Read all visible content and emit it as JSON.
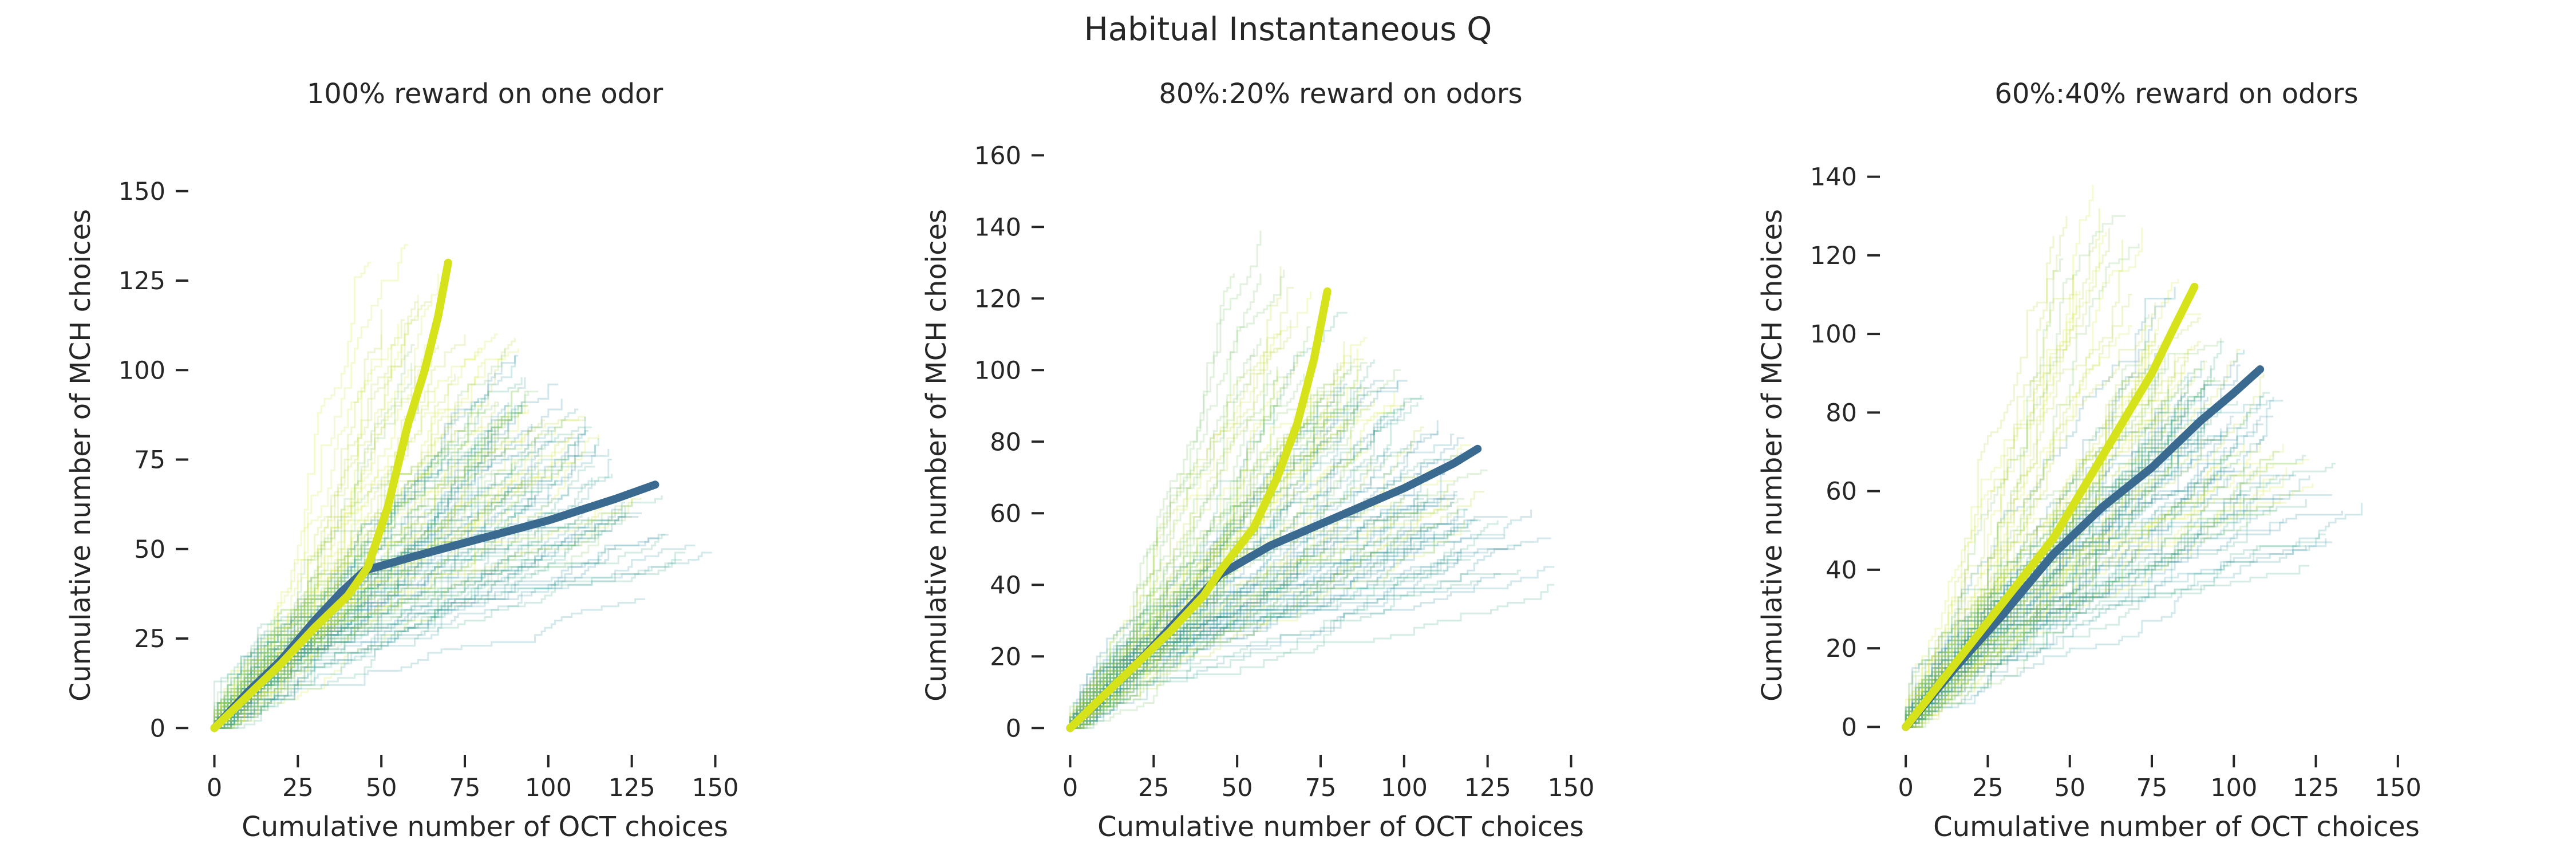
{
  "figure": {
    "title": "Habitual Instantaneous Q"
  },
  "colors": {
    "mean_low_reward_series": "#3a6a8f",
    "mean_high_reward_series": "#d6e31a",
    "individual_lines_palette": [
      "#b9d83a",
      "#d8ea3c",
      "#7cc46a",
      "#3fae8f",
      "#3a9ca8",
      "#2c8fa5"
    ]
  },
  "chart_data": [
    {
      "type": "line",
      "title": "100% reward on one odor",
      "xlabel": "Cumulative number of OCT choices",
      "ylabel": "Cumulative number of MCH choices",
      "xlim": [
        -3,
        165
      ],
      "ylim": [
        -3,
        165
      ],
      "xticks": [
        "0",
        "25",
        "50",
        "75",
        "100",
        "125",
        "150"
      ],
      "yticks": [
        "0",
        "25",
        "50",
        "75",
        "100",
        "125",
        "150"
      ],
      "xtick_values": [
        0,
        25,
        50,
        75,
        100,
        125,
        150
      ],
      "ytick_values": [
        0,
        25,
        50,
        75,
        100,
        125,
        150
      ],
      "grid": false,
      "legend": "none",
      "individual_lines": {
        "count": 120,
        "max_trials": [
          160,
          200
        ],
        "boundary": "x + y = number of trials"
      },
      "series": [
        {
          "values": [
            [
              0,
              0
            ],
            [
              10,
              10
            ],
            [
              20,
              19
            ],
            [
              30,
              30
            ],
            [
              38,
              38
            ],
            [
              45,
              44
            ],
            [
              60,
              48
            ],
            [
              80,
              53
            ],
            [
              100,
              58
            ],
            [
              120,
              64
            ],
            [
              132,
              68
            ]
          ]
        },
        {
          "values": [
            [
              0,
              0
            ],
            [
              10,
              9
            ],
            [
              20,
              18
            ],
            [
              30,
              28
            ],
            [
              40,
              37
            ],
            [
              46,
              45
            ],
            [
              52,
              62
            ],
            [
              58,
              85
            ],
            [
              63,
              100
            ],
            [
              67,
              115
            ],
            [
              70,
              130
            ]
          ]
        }
      ]
    },
    {
      "type": "line",
      "title": "80%:20% reward on odors",
      "xlabel": "Cumulative number of OCT choices",
      "ylabel": "Cumulative number of MCH choices",
      "xlim": [
        -3,
        165
      ],
      "ylim": [
        -3,
        165
      ],
      "xticks": [
        "0",
        "25",
        "50",
        "75",
        "100",
        "125",
        "150"
      ],
      "yticks": [
        "0",
        "20",
        "40",
        "60",
        "80",
        "100",
        "120",
        "140",
        "160"
      ],
      "xtick_values": [
        0,
        25,
        50,
        75,
        100,
        125,
        150
      ],
      "ytick_values": [
        0,
        20,
        40,
        60,
        80,
        100,
        120,
        140,
        160
      ],
      "grid": false,
      "legend": "none",
      "individual_lines": {
        "count": 120,
        "max_trials": [
          160,
          200
        ],
        "boundary": "x + y = number of trials"
      },
      "series": [
        {
          "values": [
            [
              0,
              0
            ],
            [
              10,
              9
            ],
            [
              20,
              18
            ],
            [
              30,
              28
            ],
            [
              40,
              38
            ],
            [
              45,
              43
            ],
            [
              60,
              51
            ],
            [
              80,
              59
            ],
            [
              100,
              67
            ],
            [
              115,
              74
            ],
            [
              122,
              78
            ]
          ]
        },
        {
          "values": [
            [
              0,
              0
            ],
            [
              10,
              9
            ],
            [
              20,
              18
            ],
            [
              30,
              27
            ],
            [
              40,
              37
            ],
            [
              45,
              44
            ],
            [
              55,
              56
            ],
            [
              62,
              70
            ],
            [
              68,
              85
            ],
            [
              73,
              103
            ],
            [
              77,
              122
            ]
          ]
        }
      ]
    },
    {
      "type": "line",
      "title": "60%:40% reward on odors",
      "xlabel": "Cumulative number of OCT choices",
      "ylabel": "Cumulative number of MCH choices",
      "xlim": [
        -3,
        168
      ],
      "ylim": [
        -3,
        150
      ],
      "xticks": [
        "0",
        "25",
        "50",
        "75",
        "100",
        "125",
        "150"
      ],
      "yticks": [
        "0",
        "20",
        "40",
        "60",
        "80",
        "100",
        "120",
        "140"
      ],
      "xtick_values": [
        0,
        25,
        50,
        75,
        100,
        125,
        150
      ],
      "ytick_values": [
        0,
        20,
        40,
        60,
        80,
        100,
        120,
        140
      ],
      "grid": false,
      "legend": "none",
      "individual_lines": {
        "count": 120,
        "max_trials": [
          160,
          200
        ],
        "boundary": "x + y = number of trials"
      },
      "series": [
        {
          "values": [
            [
              0,
              0
            ],
            [
              15,
              15
            ],
            [
              30,
              29
            ],
            [
              45,
              44
            ],
            [
              60,
              56
            ],
            [
              75,
              66
            ],
            [
              90,
              78
            ],
            [
              100,
              85
            ],
            [
              108,
              91
            ]
          ]
        },
        {
          "values": [
            [
              0,
              0
            ],
            [
              15,
              16
            ],
            [
              30,
              32
            ],
            [
              45,
              48
            ],
            [
              55,
              62
            ],
            [
              65,
              76
            ],
            [
              75,
              90
            ],
            [
              82,
              102
            ],
            [
              88,
              112
            ]
          ]
        }
      ]
    }
  ]
}
